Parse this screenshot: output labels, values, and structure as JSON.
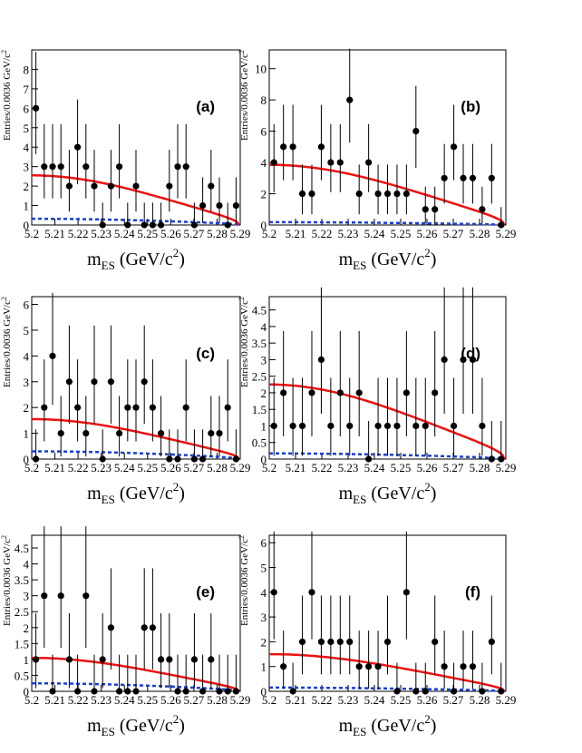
{
  "colors": {
    "fit": "#ee1111",
    "background": "#1a3fd6",
    "points": "#000000"
  },
  "x_tick_labels": [
    "5.2",
    "5.21",
    "5.22",
    "5.23",
    "5.24",
    "5.25",
    "5.26",
    "5.27",
    "5.28",
    "5.29"
  ],
  "chart_data": [
    {
      "type": "scatter",
      "panel": "(a)",
      "xlabel": "mES (GeV/c2)",
      "ylabel": "Entries/0.0036 GeV/c2",
      "xlim": [
        5.2,
        5.29
      ],
      "ylim": [
        0,
        9
      ],
      "y_ticks": [
        0,
        1,
        2,
        3,
        4,
        5,
        6,
        7,
        8
      ],
      "x": [
        5.2018,
        5.2054,
        5.209,
        5.2126,
        5.2162,
        5.2198,
        5.2234,
        5.227,
        5.2306,
        5.2342,
        5.2378,
        5.2414,
        5.245,
        5.2486,
        5.2522,
        5.2558,
        5.2594,
        5.263,
        5.2666,
        5.2702,
        5.2738,
        5.2774,
        5.281,
        5.2846,
        5.2882
      ],
      "y": [
        6,
        3,
        3,
        3,
        2,
        4,
        3,
        2,
        0,
        2,
        3,
        0,
        2,
        0,
        0,
        0,
        2,
        3,
        3,
        0,
        1,
        2,
        1,
        0,
        1
      ],
      "fit_peak": 2.55,
      "background_level": 0.32
    },
    {
      "type": "scatter",
      "panel": "(b)",
      "xlabel": "mES (GeV/c2)",
      "ylabel": "Entries/0.0036 GeV/c2",
      "xlim": [
        5.2,
        5.29
      ],
      "ylim": [
        0,
        11.2
      ],
      "y_ticks": [
        0,
        2,
        4,
        6,
        8,
        10
      ],
      "x": [
        5.2018,
        5.2054,
        5.209,
        5.2126,
        5.2162,
        5.2198,
        5.2234,
        5.227,
        5.2306,
        5.2342,
        5.2378,
        5.2414,
        5.245,
        5.2486,
        5.2522,
        5.2558,
        5.2594,
        5.263,
        5.2666,
        5.2702,
        5.2738,
        5.2774,
        5.281,
        5.2846,
        5.2882
      ],
      "y": [
        4,
        5,
        5,
        2,
        2,
        5,
        4,
        4,
        8,
        2,
        4,
        2,
        2,
        2,
        2,
        6,
        1,
        1,
        3,
        5,
        3,
        3,
        1,
        3,
        0
      ],
      "fit_peak": 3.85,
      "background_level": 0.18
    },
    {
      "type": "scatter",
      "panel": "(c)",
      "xlabel": "mES (GeV/c2)",
      "ylabel": "Entries/0.0036 GeV/c2",
      "xlim": [
        5.2,
        5.29
      ],
      "ylim": [
        0,
        6.3
      ],
      "y_ticks": [
        0,
        1,
        2,
        3,
        4,
        5,
        6
      ],
      "x": [
        5.2018,
        5.2054,
        5.209,
        5.2126,
        5.2162,
        5.2198,
        5.2234,
        5.227,
        5.2306,
        5.2342,
        5.2378,
        5.2414,
        5.245,
        5.2486,
        5.2522,
        5.2558,
        5.2594,
        5.263,
        5.2666,
        5.2702,
        5.2738,
        5.2774,
        5.281,
        5.2846,
        5.2882
      ],
      "y": [
        0,
        2,
        4,
        1,
        3,
        2,
        1,
        3,
        0,
        3,
        1,
        2,
        2,
        3,
        2,
        1,
        0,
        0,
        2,
        0,
        0,
        1,
        1,
        2,
        0
      ],
      "fit_peak": 1.55,
      "background_level": 0.3
    },
    {
      "type": "scatter",
      "panel": "(d)",
      "xlabel": "mES (GeV/c2)",
      "ylabel": "Entries/0.0036 GeV/c2",
      "xlim": [
        5.2,
        5.29
      ],
      "ylim": [
        0,
        4.9
      ],
      "y_ticks": [
        0,
        0.5,
        1,
        1.5,
        2,
        2.5,
        3,
        3.5,
        4,
        4.5
      ],
      "x": [
        5.2018,
        5.2054,
        5.209,
        5.2126,
        5.2162,
        5.2198,
        5.2234,
        5.227,
        5.2306,
        5.2342,
        5.2378,
        5.2414,
        5.245,
        5.2486,
        5.2522,
        5.2558,
        5.2594,
        5.263,
        5.2666,
        5.2702,
        5.2738,
        5.2774,
        5.281,
        5.2846,
        5.2882
      ],
      "y": [
        1,
        2,
        1,
        1,
        2,
        3,
        1,
        2,
        1,
        2,
        0,
        1,
        1,
        1,
        2,
        1,
        1,
        2,
        3,
        1,
        3,
        3,
        1,
        0,
        0
      ],
      "fit_peak": 2.25,
      "background_level": 0.17
    },
    {
      "type": "scatter",
      "panel": "(e)",
      "xlabel": "mES (GeV/c2)",
      "ylabel": "Entries/0.0036 GeV/c2",
      "xlim": [
        5.2,
        5.29
      ],
      "ylim": [
        0,
        4.9
      ],
      "y_ticks": [
        0,
        0.5,
        1,
        1.5,
        2,
        2.5,
        3,
        3.5,
        4,
        4.5
      ],
      "x": [
        5.2018,
        5.2054,
        5.209,
        5.2126,
        5.2162,
        5.2198,
        5.2234,
        5.227,
        5.2306,
        5.2342,
        5.2378,
        5.2414,
        5.245,
        5.2486,
        5.2522,
        5.2558,
        5.2594,
        5.263,
        5.2666,
        5.2702,
        5.2738,
        5.2774,
        5.281,
        5.2846,
        5.2882
      ],
      "y": [
        1,
        3,
        0,
        3,
        1,
        0,
        3,
        0,
        1,
        2,
        0,
        0,
        0,
        2,
        2,
        1,
        1,
        0,
        0,
        1,
        0,
        1,
        0,
        0,
        0
      ],
      "fit_peak": 1.05,
      "background_level": 0.25
    },
    {
      "type": "scatter",
      "panel": "(f)",
      "xlabel": "mES (GeV/c2)",
      "ylabel": "Entries/0.0036 GeV/c2",
      "xlim": [
        5.2,
        5.29
      ],
      "ylim": [
        0,
        6.3
      ],
      "y_ticks": [
        0,
        1,
        2,
        3,
        4,
        5,
        6
      ],
      "x": [
        5.2018,
        5.2054,
        5.209,
        5.2126,
        5.2162,
        5.2198,
        5.2234,
        5.227,
        5.2306,
        5.2342,
        5.2378,
        5.2414,
        5.245,
        5.2486,
        5.2522,
        5.2558,
        5.2594,
        5.263,
        5.2666,
        5.2702,
        5.2738,
        5.2774,
        5.281,
        5.2846,
        5.2882
      ],
      "y": [
        4,
        1,
        0,
        2,
        4,
        2,
        2,
        2,
        2,
        1,
        1,
        1,
        2,
        0,
        4,
        0,
        0,
        2,
        1,
        0,
        1,
        1,
        0,
        2,
        0
      ],
      "fit_peak": 1.5,
      "background_level": 0.15
    }
  ]
}
